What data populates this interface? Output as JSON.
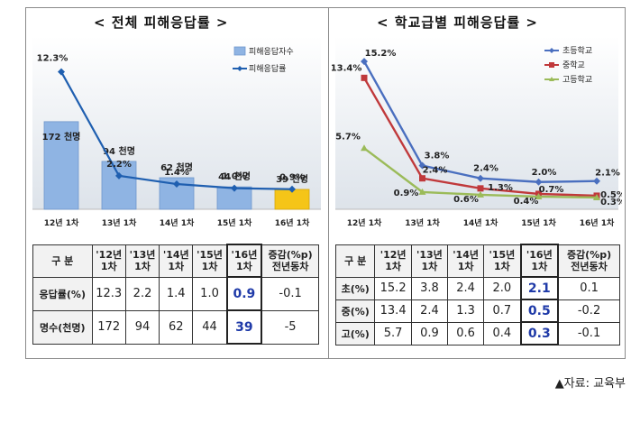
{
  "panels": {
    "left_title": "< 전체  피해응답률 >",
    "right_title": "< 학교급별  피해응답률 >"
  },
  "source": "▲자료: 교육부",
  "chart_data": [
    {
      "type": "bar",
      "categories": [
        "12년 1차",
        "13년 1차",
        "14년 1차",
        "15년 1차",
        "16년 1차"
      ],
      "series": [
        {
          "name": "피해응답자수",
          "kind": "bar",
          "values": [
            172,
            94,
            62,
            44,
            39
          ],
          "labels": [
            "172 천명",
            "94 천명",
            "62 천명",
            "44 천명",
            "39 천명"
          ],
          "color": "#8fb4e3",
          "highlight_color": "#f5c518"
        },
        {
          "name": "피해응답률",
          "kind": "line",
          "values": [
            12.3,
            2.2,
            1.4,
            1.0,
            0.9
          ],
          "labels": [
            "12.3%",
            "2.2%",
            "1.4%",
            "1.0%",
            "0.9%"
          ],
          "color": "#1f5fb0"
        }
      ],
      "grid": false,
      "legend": "top-right"
    },
    {
      "type": "line",
      "categories": [
        "12년 1차",
        "13년 1차",
        "14년 1차",
        "15년 1차",
        "16년 1차"
      ],
      "series": [
        {
          "name": "초등학교",
          "values": [
            15.2,
            3.8,
            2.4,
            2.0,
            2.1
          ],
          "labels": [
            "15.2%",
            "3.8%",
            "2.4%",
            "2.0%",
            "2.1%"
          ],
          "color": "#4a6fbf"
        },
        {
          "name": "중학교",
          "values": [
            13.4,
            2.4,
            1.3,
            0.7,
            0.5
          ],
          "labels": [
            "13.4%",
            "2.4%",
            "1.3%",
            "0.7%",
            "0.5%"
          ],
          "color": "#c0393b"
        },
        {
          "name": "고등학교",
          "values": [
            5.7,
            0.9,
            0.6,
            0.4,
            0.3
          ],
          "labels": [
            "5.7%",
            "0.9%",
            "0.6%",
            "0.4%",
            "0.3%"
          ],
          "color": "#9bbb59"
        }
      ],
      "grid": false,
      "legend": "top-right"
    }
  ],
  "tables": {
    "left": {
      "headers": [
        "구 분",
        "'12년\n1차",
        "'13년\n1차",
        "'14년\n1차",
        "'15년\n1차",
        "'16년\n1차",
        "증감(%p)\n전년동차"
      ],
      "rows": [
        {
          "label": "응답률(%)",
          "cells": [
            "12.3",
            "2.2",
            "1.4",
            "1.0",
            "0.9",
            "-0.1"
          ]
        },
        {
          "label": "명수(천명)",
          "cells": [
            "172",
            "94",
            "62",
            "44",
            "39",
            "-5"
          ]
        }
      ]
    },
    "right": {
      "headers": [
        "구 분",
        "'12년\n1차",
        "'13년\n1차",
        "'14년\n1차",
        "'15년\n1차",
        "'16년\n1차",
        "증감(%p)\n전년동차"
      ],
      "rows": [
        {
          "label": "초(%)",
          "cells": [
            "15.2",
            "3.8",
            "2.4",
            "2.0",
            "2.1",
            "0.1"
          ]
        },
        {
          "label": "중(%)",
          "cells": [
            "13.4",
            "2.4",
            "1.3",
            "0.7",
            "0.5",
            "-0.2"
          ]
        },
        {
          "label": "고(%)",
          "cells": [
            "5.7",
            "0.9",
            "0.6",
            "0.4",
            "0.3",
            "-0.1"
          ]
        }
      ]
    }
  }
}
